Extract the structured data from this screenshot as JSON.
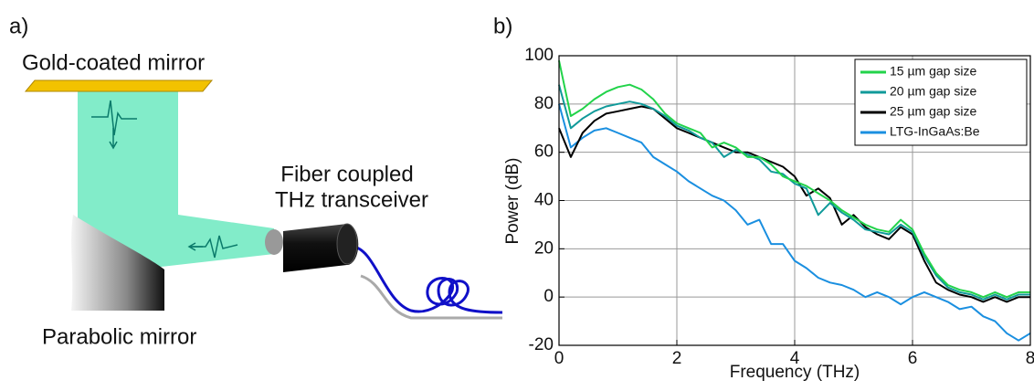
{
  "diagram": {
    "panel_label": "a)",
    "mirror_label": "Gold-coated mirror",
    "transceiver_label": [
      "Fiber coupled",
      "THz transceiver"
    ],
    "parabolic_label": "Parabolic mirror"
  },
  "chart_data": {
    "type": "line",
    "panel_label": "b)",
    "x_label": "Frequency (THz)",
    "y_label": "Power (dB)",
    "x": [
      0,
      0.2,
      0.4,
      0.6,
      0.8,
      1.0,
      1.2,
      1.4,
      1.6,
      1.8,
      2.0,
      2.2,
      2.4,
      2.6,
      2.8,
      3.0,
      3.2,
      3.4,
      3.6,
      3.8,
      4.0,
      4.2,
      4.4,
      4.6,
      4.8,
      5.0,
      5.2,
      5.4,
      5.6,
      5.8,
      6.0,
      6.2,
      6.4,
      6.6,
      6.8,
      7.0,
      7.2,
      7.4,
      7.6,
      7.8,
      8.0
    ],
    "series": [
      {
        "name": "15 µm gap size",
        "color": "#22d34a",
        "values": [
          98,
          75,
          78,
          82,
          85,
          87,
          88,
          86,
          82,
          76,
          72,
          70,
          68,
          62,
          64,
          62,
          58,
          58,
          55,
          50,
          48,
          46,
          43,
          40,
          36,
          33,
          30,
          28,
          27,
          32,
          28,
          18,
          10,
          5,
          3,
          2,
          0,
          2,
          0,
          2,
          2
        ]
      },
      {
        "name": "20 µm gap size",
        "color": "#109a9a",
        "values": [
          88,
          70,
          74,
          77,
          79,
          80,
          81,
          80,
          78,
          75,
          71,
          69,
          66,
          64,
          58,
          61,
          59,
          57,
          52,
          51,
          47,
          45,
          34,
          39,
          35,
          32,
          28,
          27,
          26,
          30,
          27,
          17,
          9,
          4,
          2,
          1,
          -1,
          1,
          -1,
          1,
          1
        ]
      },
      {
        "name": "25 µm gap size",
        "color": "#000000",
        "values": [
          70,
          58,
          68,
          73,
          76,
          77,
          78,
          79,
          78,
          74,
          70,
          68,
          66,
          64,
          62,
          60,
          60,
          58,
          56,
          54,
          50,
          42,
          45,
          41,
          30,
          34,
          29,
          26,
          24,
          29,
          26,
          15,
          6,
          3,
          1,
          0,
          -2,
          0,
          -2,
          0,
          0
        ]
      },
      {
        "name": "LTG-InGaAs:Be",
        "color": "#1a8fe0",
        "values": [
          80,
          62,
          66,
          69,
          70,
          68,
          66,
          64,
          58,
          55,
          52,
          48,
          45,
          42,
          40,
          36,
          30,
          32,
          22,
          22,
          15,
          12,
          8,
          6,
          5,
          3,
          0,
          2,
          0,
          -3,
          0,
          2,
          0,
          -2,
          -5,
          -4,
          -8,
          -10,
          -15,
          -18,
          -15
        ]
      }
    ],
    "xlim": [
      0,
      8
    ],
    "ylim": [
      -20,
      100
    ],
    "xticks": [
      0,
      2,
      4,
      6,
      8
    ],
    "yticks": [
      -20,
      0,
      20,
      40,
      60,
      80,
      100
    ],
    "grid": true,
    "legend": "upper right"
  }
}
